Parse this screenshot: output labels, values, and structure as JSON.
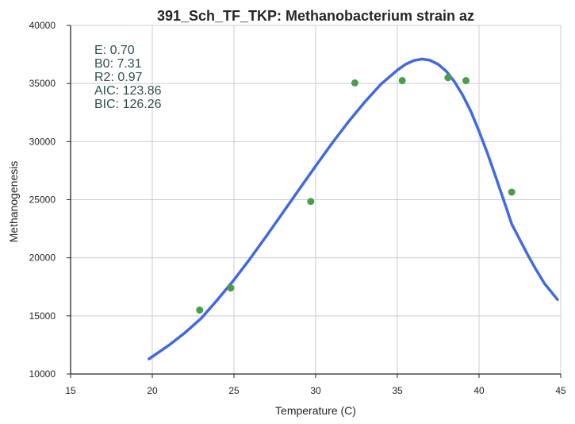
{
  "chart_data": {
    "type": "scatter",
    "title": "391_Sch_TF_TKP: Methanobacterium strain az",
    "xlabel": "Temperature (C)",
    "ylabel": "Methanogenesis",
    "xlim": [
      15,
      45
    ],
    "ylim": [
      10000,
      40000
    ],
    "xticks": [
      15,
      20,
      25,
      30,
      35,
      40,
      45
    ],
    "yticks": [
      10000,
      15000,
      20000,
      25000,
      30000,
      35000,
      40000
    ],
    "grid": true,
    "series": [
      {
        "kind": "points",
        "color": "#4a9e4a",
        "x": [
          22.9,
          24.8,
          29.7,
          32.4,
          35.3,
          38.1,
          39.2,
          42.0
        ],
        "y": [
          15500,
          17400,
          24850,
          35050,
          35250,
          35500,
          35250,
          25650
        ]
      },
      {
        "kind": "fitted-curve",
        "color": "#4169e1",
        "x": [
          19.8,
          21,
          22,
          23,
          24,
          25,
          26,
          27,
          28,
          29,
          30,
          31,
          32,
          33,
          34,
          35,
          35.5,
          36,
          36.5,
          37,
          37.5,
          38,
          38.5,
          39,
          39.5,
          40,
          40.5,
          41,
          41.5,
          42,
          42.5,
          43,
          43.5,
          44,
          44.8
        ],
        "y": [
          11300,
          12450,
          13550,
          14800,
          16400,
          18100,
          19950,
          21900,
          23900,
          25900,
          27900,
          29850,
          31700,
          33400,
          34950,
          36150,
          36650,
          36970,
          37100,
          37000,
          36650,
          36050,
          35150,
          34000,
          32600,
          30900,
          29050,
          27050,
          25000,
          22900,
          21550,
          20200,
          18950,
          17800,
          16400
        ]
      }
    ],
    "annotations": [
      "E:  0.70",
      "B0:  7.31",
      "R2:  0.97",
      "AIC: 123.86",
      "BIC: 126.26"
    ]
  }
}
